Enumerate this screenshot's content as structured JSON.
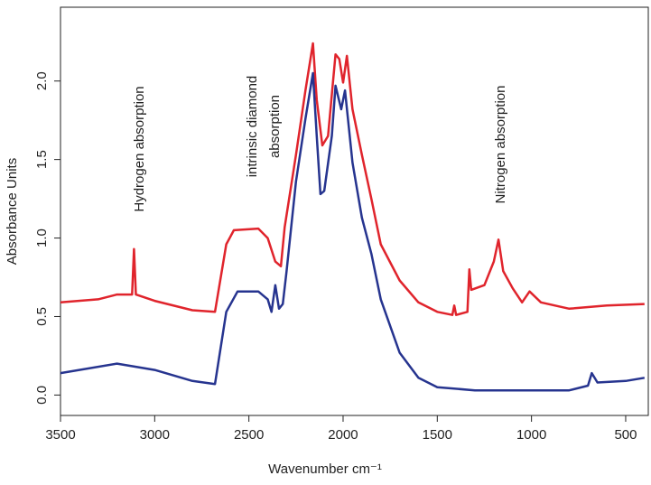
{
  "chart_data": {
    "type": "line",
    "xlabel": "Wavenumber cm⁻¹",
    "ylabel": "Absorbance Units",
    "xlim": [
      3500,
      380
    ],
    "ylim": [
      -0.13,
      2.47
    ],
    "xticks": [
      3500,
      3000,
      2500,
      2000,
      1500,
      1000,
      500
    ],
    "yticks": [
      {
        "value": 0,
        "label": "0.0"
      },
      0.5,
      {
        "value": 1,
        "label": "1.0"
      },
      1.5,
      {
        "value": 2,
        "label": "2.0"
      }
    ],
    "annotations": [
      "Hydrogen absorption",
      "intrinsic diamond",
      "absorption",
      "Nitrogen absorption"
    ],
    "series": [
      {
        "color": "#e0242c",
        "x": [
          3500,
          3300,
          3200,
          3120,
          3110,
          3100,
          3000,
          2800,
          2680,
          2620,
          2580,
          2450,
          2400,
          2360,
          2330,
          2310,
          2250,
          2200,
          2160,
          2140,
          2110,
          2080,
          2040,
          2020,
          2000,
          1980,
          1950,
          1900,
          1850,
          1800,
          1700,
          1600,
          1500,
          1420,
          1410,
          1400,
          1340,
          1330,
          1320,
          1250,
          1200,
          1175,
          1150,
          1100,
          1050,
          1010,
          950,
          800,
          600,
          400
        ],
        "values": [
          0.59,
          0.61,
          0.64,
          0.64,
          0.93,
          0.64,
          0.6,
          0.54,
          0.53,
          0.96,
          1.05,
          1.06,
          1.0,
          0.85,
          0.82,
          1.07,
          1.53,
          1.94,
          2.24,
          1.88,
          1.59,
          1.65,
          2.17,
          2.14,
          1.99,
          2.16,
          1.82,
          1.53,
          1.25,
          0.96,
          0.73,
          0.59,
          0.53,
          0.51,
          0.57,
          0.51,
          0.53,
          0.8,
          0.67,
          0.7,
          0.85,
          0.99,
          0.79,
          0.68,
          0.59,
          0.66,
          0.59,
          0.55,
          0.57,
          0.58
        ]
      },
      {
        "color": "#26348f",
        "x": [
          3500,
          3200,
          3000,
          2800,
          2680,
          2620,
          2560,
          2450,
          2400,
          2380,
          2360,
          2340,
          2320,
          2300,
          2250,
          2200,
          2160,
          2140,
          2120,
          2100,
          2060,
          2040,
          2010,
          1990,
          1950,
          1900,
          1850,
          1800,
          1700,
          1600,
          1500,
          1300,
          1000,
          800,
          700,
          680,
          650,
          500,
          400
        ],
        "values": [
          0.14,
          0.2,
          0.16,
          0.09,
          0.07,
          0.53,
          0.66,
          0.66,
          0.61,
          0.53,
          0.7,
          0.55,
          0.58,
          0.79,
          1.36,
          1.76,
          2.05,
          1.65,
          1.28,
          1.3,
          1.65,
          1.97,
          1.82,
          1.94,
          1.48,
          1.13,
          0.9,
          0.61,
          0.27,
          0.11,
          0.05,
          0.03,
          0.03,
          0.03,
          0.06,
          0.14,
          0.08,
          0.09,
          0.11
        ]
      }
    ]
  }
}
